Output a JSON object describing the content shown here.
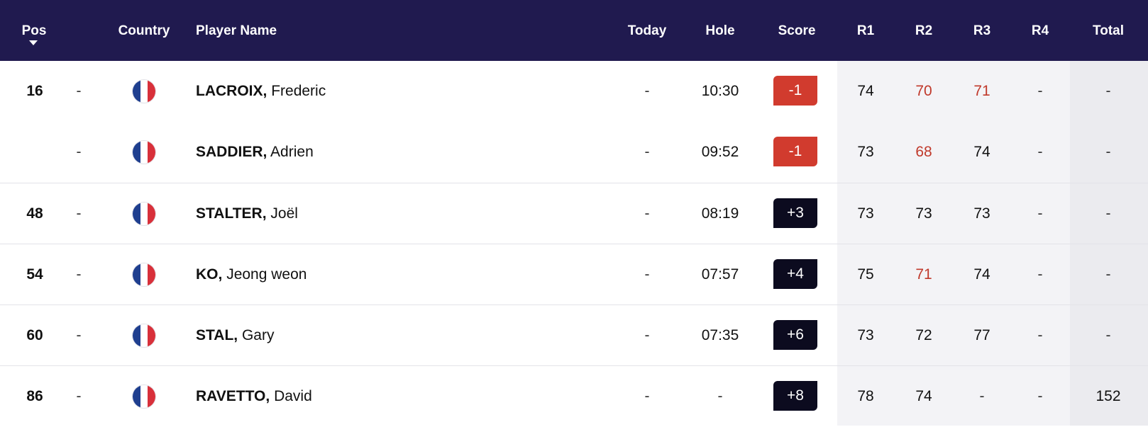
{
  "header": {
    "pos": "Pos",
    "country": "Country",
    "player": "Player Name",
    "today": "Today",
    "hole": "Hole",
    "score": "Score",
    "r1": "R1",
    "r2": "R2",
    "r3": "R3",
    "r4": "R4",
    "total": "Total"
  },
  "colors": {
    "header_bg": "#201a4f",
    "under_par": "#d13b2e",
    "over_par": "#0c0b1f",
    "low_round": "#c0392b"
  },
  "rows": [
    {
      "pos": "16",
      "move": "-",
      "country": "France",
      "surname": "LACROIX,",
      "given": "Frederic",
      "today": "-",
      "hole": "10:30",
      "score": "-1",
      "score_type": "under",
      "r1": "74",
      "r2": "70",
      "r3": "71",
      "r4": "-",
      "total": "-",
      "r1_low": false,
      "r2_low": true,
      "r3_low": true
    },
    {
      "pos": "",
      "move": "-",
      "country": "France",
      "surname": "SADDIER,",
      "given": "Adrien",
      "today": "-",
      "hole": "09:52",
      "score": "-1",
      "score_type": "under",
      "r1": "73",
      "r2": "68",
      "r3": "74",
      "r4": "-",
      "total": "-",
      "r1_low": false,
      "r2_low": true,
      "r3_low": false
    },
    {
      "pos": "48",
      "move": "-",
      "country": "France",
      "surname": "STALTER,",
      "given": "Joël",
      "today": "-",
      "hole": "08:19",
      "score": "+3",
      "score_type": "over",
      "r1": "73",
      "r2": "73",
      "r3": "73",
      "r4": "-",
      "total": "-",
      "r1_low": false,
      "r2_low": false,
      "r3_low": false
    },
    {
      "pos": "54",
      "move": "-",
      "country": "France",
      "surname": "KO,",
      "given": "Jeong weon",
      "today": "-",
      "hole": "07:57",
      "score": "+4",
      "score_type": "over",
      "r1": "75",
      "r2": "71",
      "r3": "74",
      "r4": "-",
      "total": "-",
      "r1_low": false,
      "r2_low": true,
      "r3_low": false
    },
    {
      "pos": "60",
      "move": "-",
      "country": "France",
      "surname": "STAL,",
      "given": "Gary",
      "today": "-",
      "hole": "07:35",
      "score": "+6",
      "score_type": "over",
      "r1": "73",
      "r2": "72",
      "r3": "77",
      "r4": "-",
      "total": "-",
      "r1_low": false,
      "r2_low": false,
      "r3_low": false
    },
    {
      "pos": "86",
      "move": "-",
      "country": "France",
      "surname": "RAVETTO,",
      "given": "David",
      "today": "-",
      "hole": "-",
      "score": "+8",
      "score_type": "over",
      "r1": "78",
      "r2": "74",
      "r3": "-",
      "r4": "-",
      "total": "152",
      "r1_low": false,
      "r2_low": false,
      "r3_low": false
    }
  ]
}
